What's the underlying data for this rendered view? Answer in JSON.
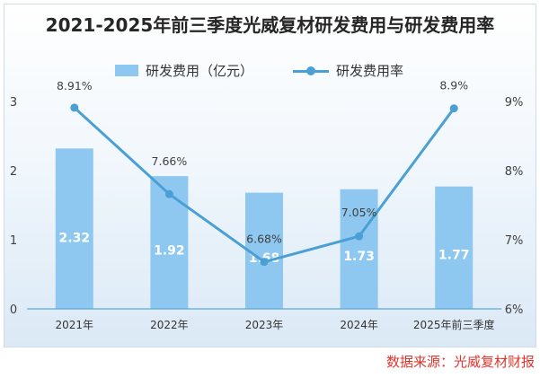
{
  "chart_data": {
    "type": "bar+line",
    "title": "2021-2025年前三季度光威复材研发费用与研发费用率",
    "categories": [
      "2021年",
      "2022年",
      "2023年",
      "2024年",
      "2025年前三季度"
    ],
    "series": [
      {
        "name": "研发费用（亿元）",
        "type": "bar",
        "axis": "left",
        "values": [
          2.32,
          1.92,
          1.68,
          1.73,
          1.77
        ],
        "labels": [
          "2.32",
          "1.92",
          "1.68",
          "1.73",
          "1.77"
        ],
        "color": "#8ec8f1"
      },
      {
        "name": "研发费用率",
        "type": "line",
        "axis": "right",
        "values": [
          8.91,
          7.66,
          6.68,
          7.05,
          8.9
        ],
        "labels": [
          "8.91%",
          "7.66%",
          "6.68%",
          "7.05%",
          "8.9%"
        ],
        "color": "#4aa0d4"
      }
    ],
    "y_left": {
      "ticks": [
        "0",
        "1",
        "2",
        "3"
      ],
      "range": [
        0,
        3
      ]
    },
    "y_right": {
      "ticks": [
        "6%",
        "7%",
        "8%",
        "9%"
      ],
      "range": [
        6,
        9
      ]
    },
    "grid": false,
    "legend": "top"
  },
  "source_text": "数据来源：光威复材财报"
}
